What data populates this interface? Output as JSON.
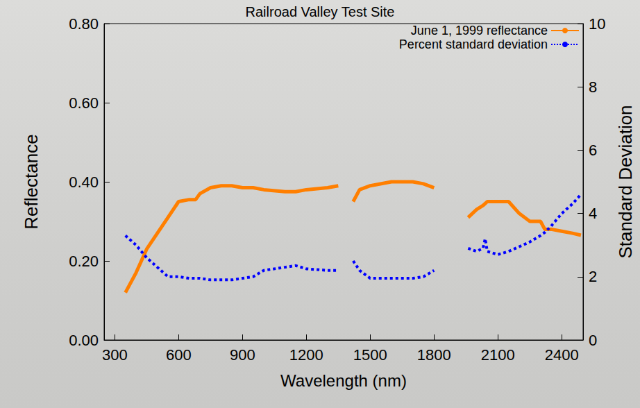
{
  "chart_data": {
    "type": "line",
    "title": "Railroad Valley Test Site",
    "x_label": "Wavelength (nm)",
    "y_label": "Reflectance",
    "y2_label": "Standard Deviation",
    "xlim": [
      250,
      2500
    ],
    "xticks": [
      300,
      600,
      900,
      1200,
      1500,
      1800,
      2100,
      2400
    ],
    "ylim": [
      0,
      0.8
    ],
    "yticks": [
      {
        "value": 0,
        "label": "0.00"
      },
      {
        "value": 0.2,
        "label": "0.20"
      },
      {
        "value": 0.4,
        "label": "0.40"
      },
      {
        "value": 0.6,
        "label": "0.60"
      },
      {
        "value": 0.8,
        "label": "0.80"
      }
    ],
    "y2lim": [
      0,
      10
    ],
    "y2ticks": [
      0,
      2,
      4,
      6,
      8,
      10
    ],
    "grid": false,
    "legend": "upper right",
    "x": [
      350,
      400,
      450,
      500,
      550,
      600,
      650,
      680,
      700,
      750,
      800,
      850,
      900,
      950,
      1000,
      1100,
      1150,
      1200,
      1300,
      1350,
      1390,
      1420,
      1450,
      1500,
      1600,
      1700,
      1750,
      1800,
      1900,
      1960,
      2000,
      2030,
      2040,
      2050,
      2100,
      2150,
      2200,
      2250,
      2300,
      2320,
      2350,
      2400,
      2450,
      2490
    ],
    "series": [
      {
        "name": "June 1, 1999 reflectance",
        "color": "#ff7f00",
        "line_style": "solid",
        "axis": "y",
        "values": [
          0.12,
          0.17,
          0.23,
          0.27,
          0.31,
          0.35,
          0.355,
          0.355,
          0.37,
          0.385,
          0.39,
          0.39,
          0.385,
          0.385,
          0.38,
          0.375,
          0.375,
          0.38,
          0.385,
          0.39,
          null,
          0.35,
          0.38,
          0.39,
          0.4,
          0.4,
          0.395,
          0.385,
          null,
          0.31,
          0.33,
          0.34,
          0.345,
          0.35,
          0.35,
          0.35,
          0.32,
          0.3,
          0.3,
          0.28,
          0.28,
          0.275,
          0.27,
          0.265
        ]
      },
      {
        "name": "Percent standard deviation",
        "color": "#0000ff",
        "line_style": "dotted",
        "axis": "y2",
        "values": [
          3.3,
          3.0,
          2.6,
          2.3,
          2.0,
          2.0,
          1.95,
          1.95,
          1.95,
          1.9,
          1.9,
          1.9,
          1.95,
          2.0,
          2.2,
          2.3,
          2.35,
          2.25,
          2.2,
          2.2,
          null,
          2.5,
          2.2,
          1.95,
          1.95,
          1.95,
          2.0,
          2.2,
          null,
          2.9,
          2.8,
          2.9,
          3.2,
          2.8,
          2.7,
          2.8,
          2.95,
          3.1,
          3.3,
          3.4,
          3.6,
          4.0,
          4.3,
          4.6
        ]
      }
    ]
  }
}
